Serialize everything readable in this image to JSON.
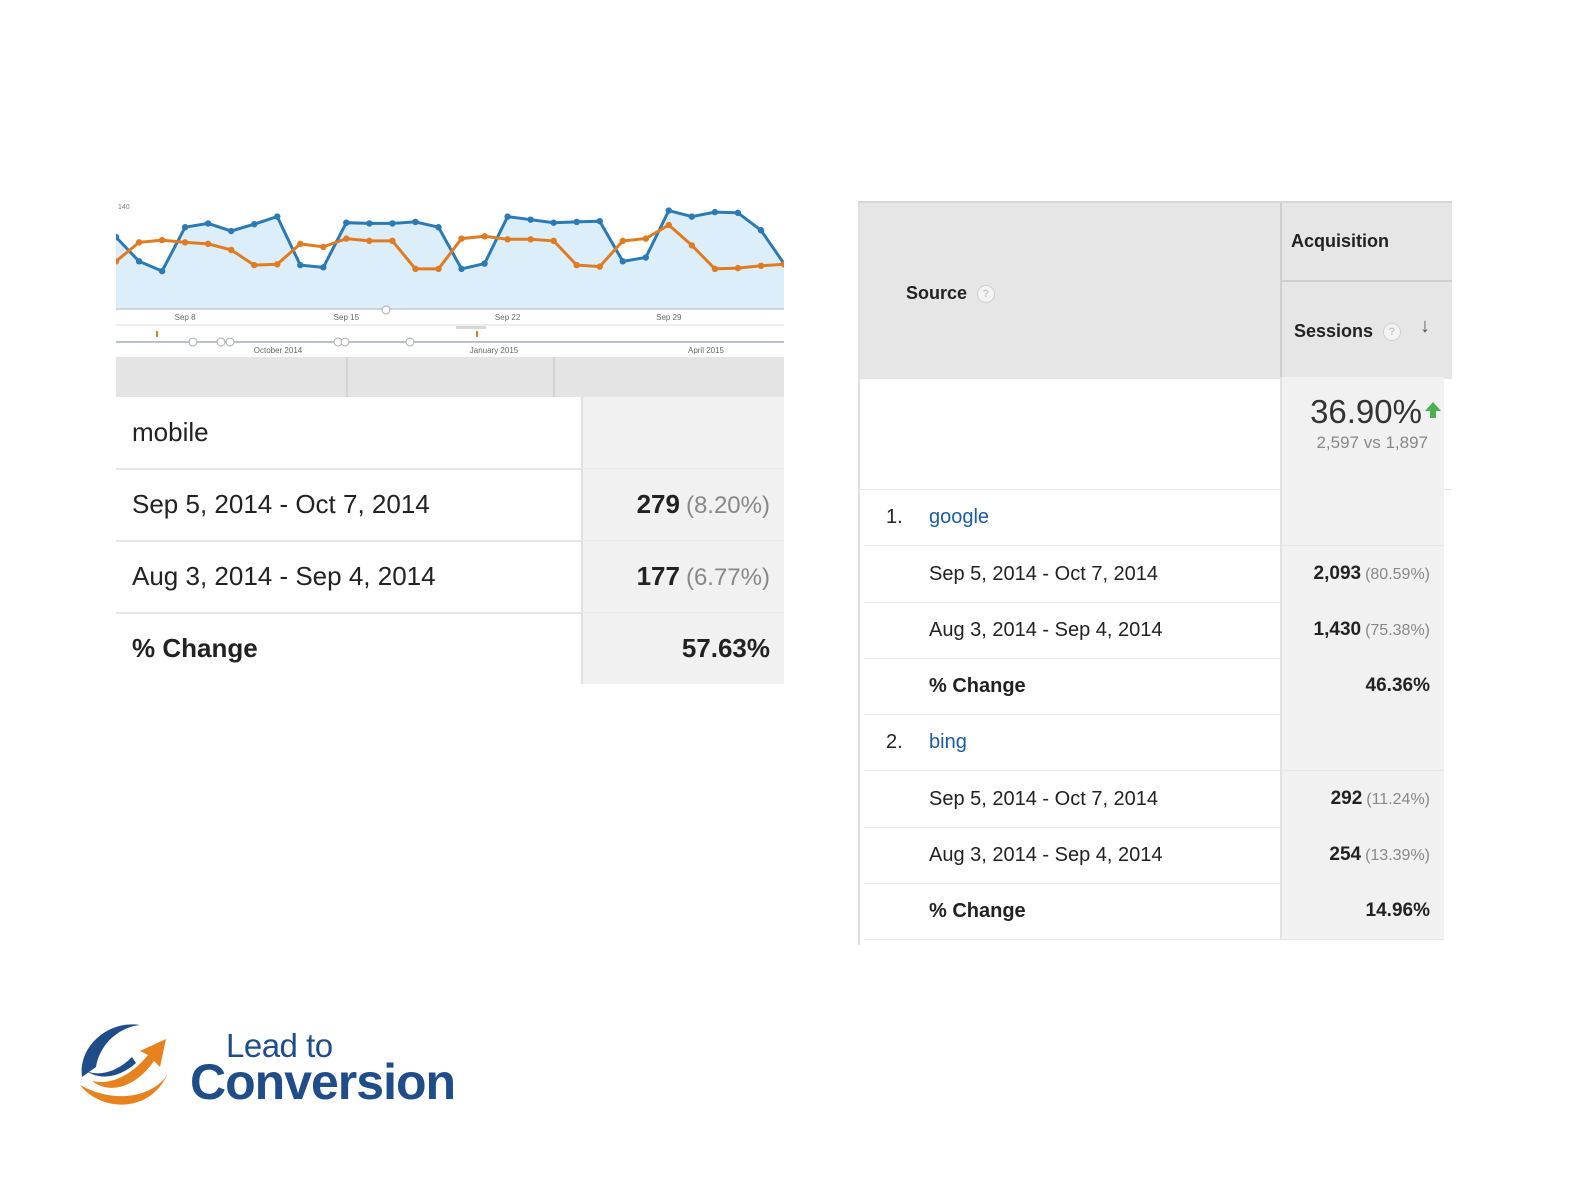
{
  "colors": {
    "series_blue": "#2a7ab5",
    "series_orange": "#e07b22",
    "link_blue": "#1a5ca8",
    "brand_blue": "#1f4d8a",
    "brand_orange": "#e8821f",
    "up_green": "#4caf50"
  },
  "chart_data": {
    "type": "line",
    "y_top_label": "140",
    "ylim": [
      0,
      140
    ],
    "x_tick_labels": [
      "Sep 8",
      "Sep 15",
      "Sep 22",
      "Sep 29"
    ],
    "timeline_labels": [
      "October 2014",
      "January 2015",
      "April 2015"
    ],
    "series": [
      {
        "color": "#2a7ab5",
        "values": [
          95,
          63,
          50,
          108,
          113,
          103,
          112,
          122,
          58,
          55,
          114,
          113,
          113,
          115,
          108,
          53,
          60,
          122,
          118,
          114,
          115,
          116,
          63,
          68,
          130,
          122,
          128,
          127,
          104,
          60
        ]
      },
      {
        "color": "#e07b22",
        "values": [
          63,
          88,
          91,
          88,
          86,
          78,
          58,
          59,
          86,
          82,
          93,
          90,
          90,
          53,
          53,
          93,
          96,
          92,
          92,
          90,
          58,
          56,
          90,
          93,
          111,
          84,
          53,
          54,
          57,
          59
        ]
      }
    ]
  },
  "left_table": {
    "segment": "mobile",
    "rows": [
      {
        "label": "Sep 5, 2014 - Oct 7, 2014",
        "value": "279",
        "pct": "(8.20%)"
      },
      {
        "label": "Aug 3, 2014 - Sep 4, 2014",
        "value": "177",
        "pct": "(6.77%)"
      }
    ],
    "change_label": "% Change",
    "change_value": "57.63%"
  },
  "right_table": {
    "source_header": "Source",
    "acquisition_header": "Acquisition",
    "sessions_header": "Sessions",
    "help_glyph": "?",
    "sort_glyph": "↓",
    "summary_pct": "36.90%",
    "summary_vs": "2,597 vs 1,897",
    "sources": [
      {
        "rank": "1.",
        "name": "google",
        "rows": [
          {
            "label": "Sep 5, 2014 - Oct 7, 2014",
            "value": "2,093",
            "pct": "(80.59%)"
          },
          {
            "label": "Aug 3, 2014 - Sep 4, 2014",
            "value": "1,430",
            "pct": "(75.38%)"
          }
        ],
        "change_label": "% Change",
        "change_value": "46.36%"
      },
      {
        "rank": "2.",
        "name": "bing",
        "rows": [
          {
            "label": "Sep 5, 2014 - Oct 7, 2014",
            "value": "292",
            "pct": "(11.24%)"
          },
          {
            "label": "Aug 3, 2014 - Sep 4, 2014",
            "value": "254",
            "pct": "(13.39%)"
          }
        ],
        "change_label": "% Change",
        "change_value": "14.96%"
      }
    ]
  },
  "logo": {
    "line1": "Lead to",
    "line2": "Conversion"
  }
}
